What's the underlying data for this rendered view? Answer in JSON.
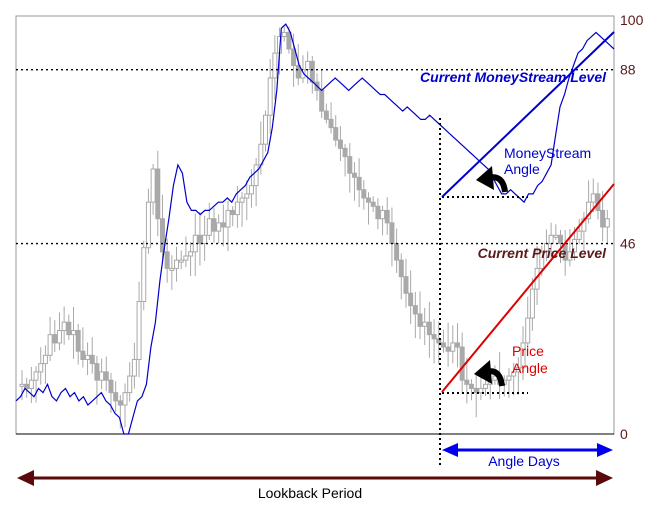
{
  "chart_data": {
    "type": "line",
    "ylim": [
      0,
      100
    ],
    "y_ticks": [
      {
        "value": 100,
        "label": "100"
      },
      {
        "value": 88,
        "label": "88"
      },
      {
        "value": 46,
        "label": "46"
      },
      {
        "value": 0,
        "label": "0"
      }
    ],
    "grid": false,
    "colors": {
      "moneystream": "#0000cc",
      "price_angle": "#dd0000",
      "candles": "#a9a9a9",
      "lookback": "#5a0a0a",
      "angle_days": "#0000ee",
      "level_text_money": "#0000cc",
      "level_text_price": "#5a1a1a"
    },
    "series": [
      {
        "key": "moneystream",
        "values": [
          8,
          9,
          11,
          10,
          9,
          11,
          10,
          12,
          9,
          8,
          10,
          11,
          9,
          10,
          8,
          9,
          7,
          8,
          9,
          10,
          8,
          7,
          5,
          4,
          0,
          0,
          4,
          8,
          9,
          12,
          21,
          27,
          37,
          45,
          52,
          60,
          65,
          63,
          56,
          54,
          54,
          53,
          54,
          54,
          55,
          56,
          56,
          57,
          56,
          58,
          59,
          60,
          62,
          63,
          64,
          66,
          68,
          74,
          83,
          98,
          99,
          97,
          93,
          89,
          87,
          86,
          85,
          84,
          83,
          84,
          85,
          86,
          85,
          84,
          83,
          84,
          85,
          86,
          85,
          84,
          83,
          82,
          82,
          81,
          80,
          79,
          78,
          79,
          78,
          77,
          76,
          76,
          77,
          76,
          75,
          74,
          73,
          72,
          71,
          70,
          69,
          68,
          67,
          66,
          65,
          64,
          62,
          60,
          58,
          58,
          59,
          58,
          57,
          56,
          58,
          58,
          60,
          61,
          63,
          65,
          72,
          79,
          82,
          86,
          89,
          92,
          93,
          95,
          96,
          97,
          96,
          95,
          94,
          93
        ]
      }
    ],
    "candles_close": [
      12,
      11,
      13,
      15,
      17,
      19,
      24,
      22,
      25,
      27,
      24,
      25,
      20,
      18,
      19,
      17,
      13,
      15,
      13,
      10,
      8,
      7,
      10,
      14,
      18,
      32,
      45,
      56,
      64,
      52,
      44,
      40,
      40,
      42,
      42,
      43,
      44,
      48,
      46,
      48,
      52,
      49,
      51,
      50,
      54,
      53,
      56,
      57,
      58,
      60,
      65,
      70,
      77,
      86,
      92,
      96,
      97,
      93,
      89,
      86,
      88,
      90,
      85,
      83,
      78,
      76,
      74,
      71,
      69,
      67,
      63,
      62,
      59,
      57,
      56,
      55,
      52,
      54,
      51,
      46,
      42,
      38,
      34,
      31,
      29,
      26,
      27,
      24,
      23,
      22,
      21,
      20,
      22,
      21,
      13,
      12,
      11,
      10,
      11,
      12,
      13,
      14,
      12,
      13,
      14,
      15,
      16,
      22,
      28,
      35,
      40,
      44,
      46,
      48,
      48,
      46,
      42,
      44,
      47,
      49,
      52,
      56,
      58,
      54,
      50,
      52
    ]
  },
  "annotations": {
    "current_moneystream_level": "Current MoneyStream Level",
    "current_price_level": "Current Price Level",
    "moneystream_angle_l1": "MoneyStream",
    "moneystream_angle_l2": "Angle",
    "price_angle_l1": "Price",
    "price_angle_l2": "Angle",
    "angle_days": "Angle Days",
    "lookback_period": "Lookback Period"
  }
}
